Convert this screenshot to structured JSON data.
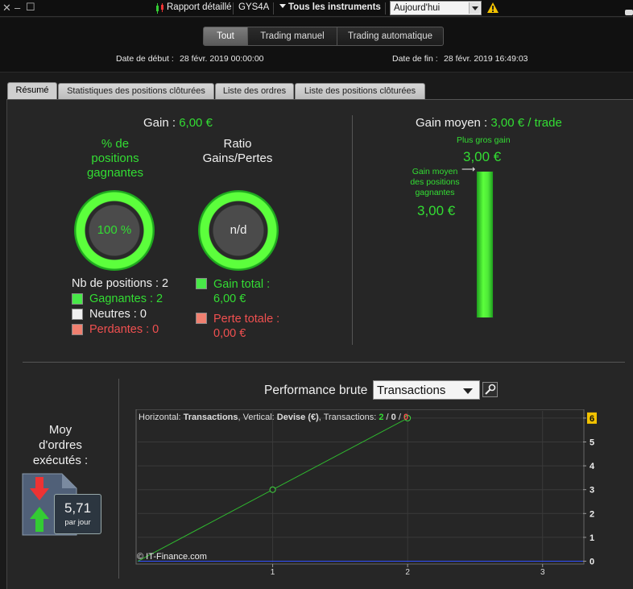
{
  "titlebar": {
    "report_label": "Rapport détaillé",
    "symbol": "GYS4A",
    "instruments_label": "Tous les instruments",
    "period_value": "Aujourd'hui"
  },
  "header": {
    "segments": [
      "Tout",
      "Trading manuel",
      "Trading automatique"
    ],
    "start_label": "Date de début :",
    "start_value": "28 févr. 2019 00:00:00",
    "end_label": "Date de fin :",
    "end_value": "28 févr. 2019 16:49:03"
  },
  "tabs": [
    "Résumé",
    "Statistiques des positions clôturées",
    "Liste des ordres",
    "Liste des positions clôturées"
  ],
  "summary": {
    "gain_label": "Gain :",
    "gain_value": "6,00 €",
    "winning_pct_title_1": "% de",
    "winning_pct_title_2": "positions",
    "winning_pct_title_3": "gagnantes",
    "winning_pct_value": "100 %",
    "ratio_title_1": "Ratio",
    "ratio_title_2": "Gains/Pertes",
    "ratio_value": "n/d",
    "positions_count": "Nb de positions : 2",
    "winners": "Gagnantes : 2",
    "neutrals": "Neutres : 0",
    "losers": "Perdantes : 0",
    "total_gain_1": "Gain total :",
    "total_gain_2": "6,00 €",
    "total_loss_1": "Perte totale :",
    "total_loss_2": "0,00 €"
  },
  "avg_gain": {
    "label": "Gain moyen :",
    "value": "3,00 € / trade",
    "biggest_label": "Plus gros gain",
    "biggest_value": "3,00 €",
    "avg_win_label_1": "Gain moyen",
    "avg_win_label_2": "des positions",
    "avg_win_label_3": "gagnantes",
    "avg_win_value": "3,00 €",
    "arrow": "⟶"
  },
  "orders": {
    "title_1": "Moy",
    "title_2": "d'ordres",
    "title_3": "exécutés :",
    "value": "5,71",
    "unit": "par jour"
  },
  "performance": {
    "title": "Performance brute",
    "selector_value": "Transactions",
    "info_prefix": "Horizontal: ",
    "info_h": "Transactions",
    "info_mid": ", Vertical: ",
    "info_v": "Devise (€)",
    "info_tx": ", Transactions: ",
    "info_win": "2",
    "info_slash1": " / ",
    "info_neutral": "0",
    "info_slash2": " / ",
    "info_loss": "0",
    "copyright": "© IT-Finance.com"
  },
  "chart_data": {
    "type": "line",
    "x": [
      0,
      1,
      2
    ],
    "series": [
      {
        "values": [
          0,
          3,
          6
        ],
        "color": "#2fb82f"
      }
    ],
    "baseline": 0,
    "xticks": [
      1,
      2,
      3
    ],
    "yticks": [
      0,
      1,
      2,
      3,
      4,
      5,
      6
    ],
    "xlim": [
      0,
      3.3
    ],
    "ylim": [
      -0.05,
      6.3
    ],
    "highlight_ytick": 6
  }
}
